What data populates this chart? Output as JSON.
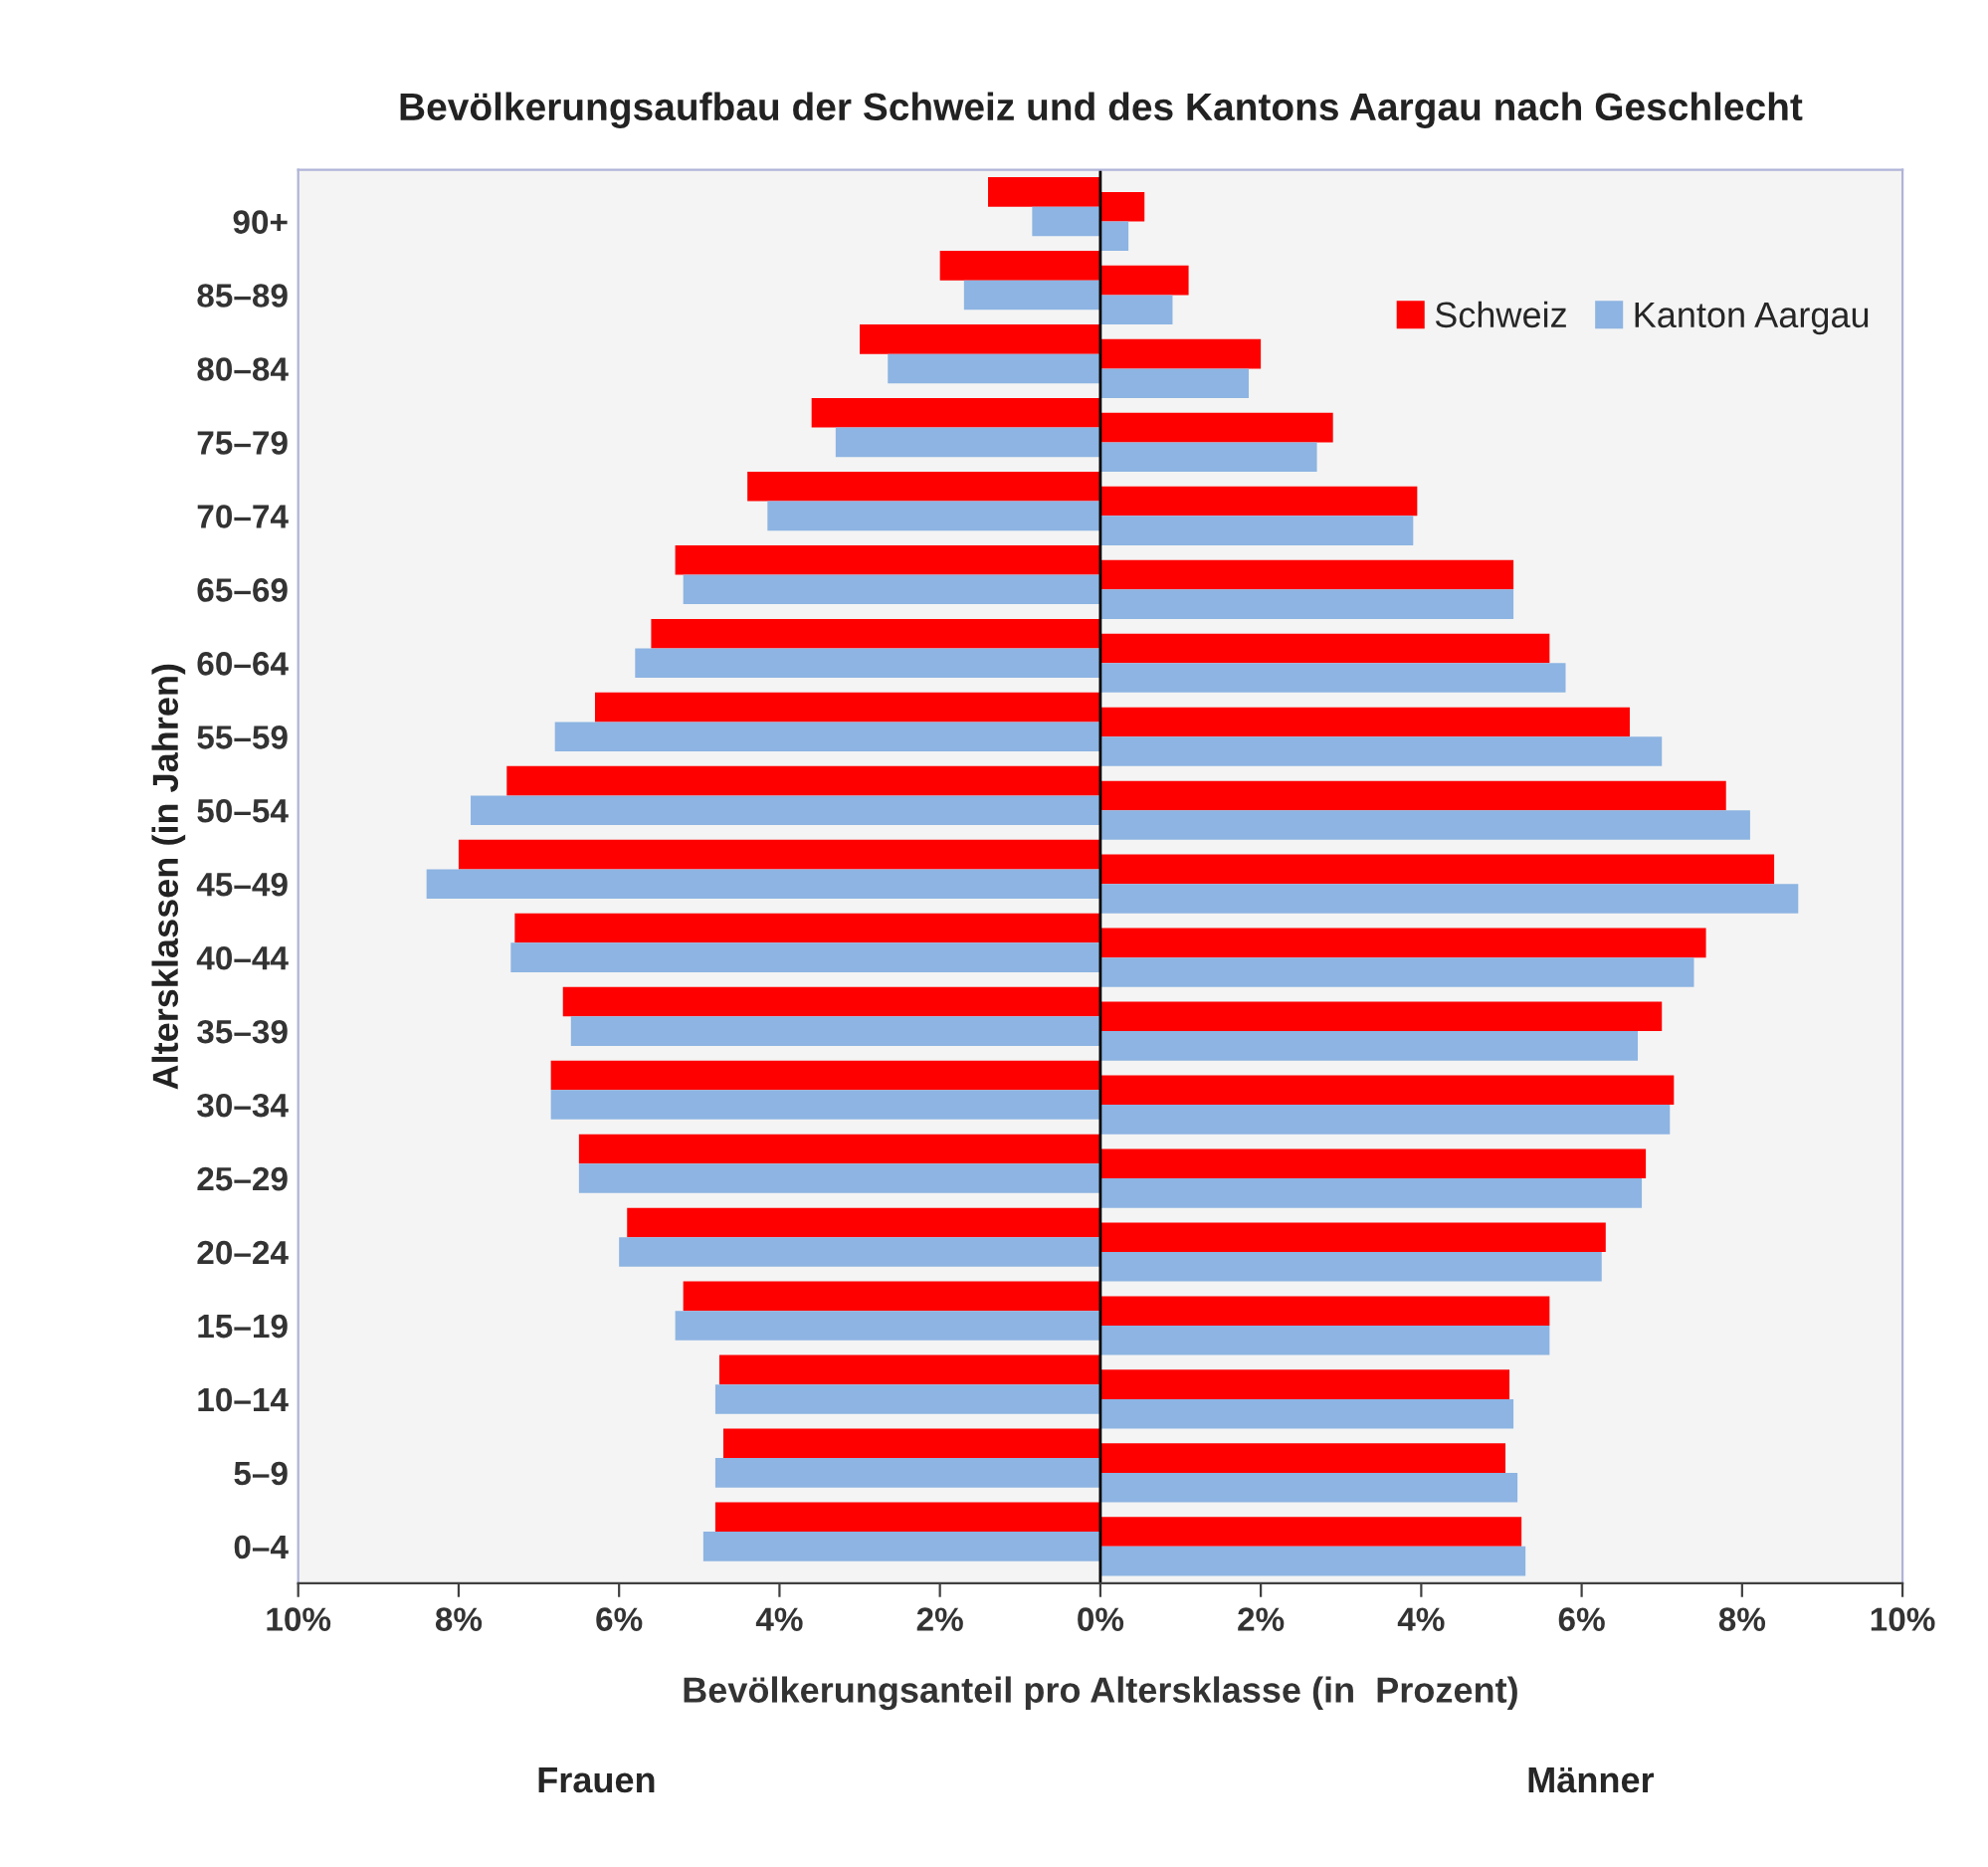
{
  "chart_data": {
    "type": "bar",
    "orientation": "horizontal",
    "title": "Bevölkerungsaufbau der Schweiz und des Kantons Aargau nach Geschlecht",
    "xlabel": "Bevölkerungsanteil pro Altersklasse (in  Prozent)",
    "ylabel": "Altersklassen (in Jahren)",
    "categories": [
      "90+",
      "85–89",
      "80–84",
      "75–79",
      "70–74",
      "65–69",
      "60–64",
      "55–59",
      "50–54",
      "45–49",
      "40–44",
      "35–39",
      "30–34",
      "25–29",
      "20–24",
      "15–19",
      "10–14",
      "5–9",
      "0–4"
    ],
    "series": [
      {
        "color": "#ff0000",
        "values": [
          -1.4,
          -2.0,
          -3.0,
          -3.6,
          -4.4,
          -5.3,
          -5.6,
          -6.3,
          -7.4,
          -8.0,
          -7.3,
          -6.7,
          -6.85,
          -6.5,
          -5.9,
          -5.2,
          -4.75,
          -4.7,
          -4.8
        ]
      },
      {
        "color": "#8db4e2",
        "values": [
          -0.85,
          -1.7,
          -2.65,
          -3.3,
          -4.15,
          -5.2,
          -5.8,
          -6.8,
          -7.85,
          -8.4,
          -7.35,
          -6.6,
          -6.85,
          -6.5,
          -6.0,
          -5.3,
          -4.8,
          -4.8,
          -4.95
        ]
      },
      {
        "name": "Schweiz",
        "color": "#ff0000",
        "values": [
          0.55,
          1.1,
          2.0,
          2.9,
          3.95,
          5.15,
          5.6,
          6.6,
          7.8,
          8.4,
          7.55,
          7.0,
          7.15,
          6.8,
          6.3,
          5.6,
          5.1,
          5.05,
          5.25
        ]
      },
      {
        "name": "Kanton Aargau",
        "color": "#8db4e2",
        "values": [
          0.35,
          0.9,
          1.85,
          2.7,
          3.9,
          5.15,
          5.8,
          7.0,
          8.1,
          8.7,
          7.4,
          6.7,
          7.1,
          6.75,
          6.25,
          5.6,
          5.15,
          5.2,
          5.3
        ]
      }
    ],
    "xlim": [
      -10,
      10
    ],
    "xticks": [
      {
        "value": -10,
        "label": "10%"
      },
      {
        "value": -8,
        "label": "8%"
      },
      {
        "value": -6,
        "label": "6%"
      },
      {
        "value": -4,
        "label": "4%"
      },
      {
        "value": -2,
        "label": "2%"
      },
      {
        "value": 0,
        "label": "0%"
      },
      {
        "value": 2,
        "label": "2%"
      },
      {
        "value": 4,
        "label": "4%"
      },
      {
        "value": 6,
        "label": "6%"
      },
      {
        "value": 8,
        "label": "8%"
      },
      {
        "value": 10,
        "label": "10%"
      }
    ],
    "ref_lines": [
      {
        "axis": "x",
        "value": 0,
        "color": "#000000"
      }
    ],
    "annotations": [
      "Frauen",
      "Männer"
    ],
    "legend": "top right",
    "grid": false
  }
}
